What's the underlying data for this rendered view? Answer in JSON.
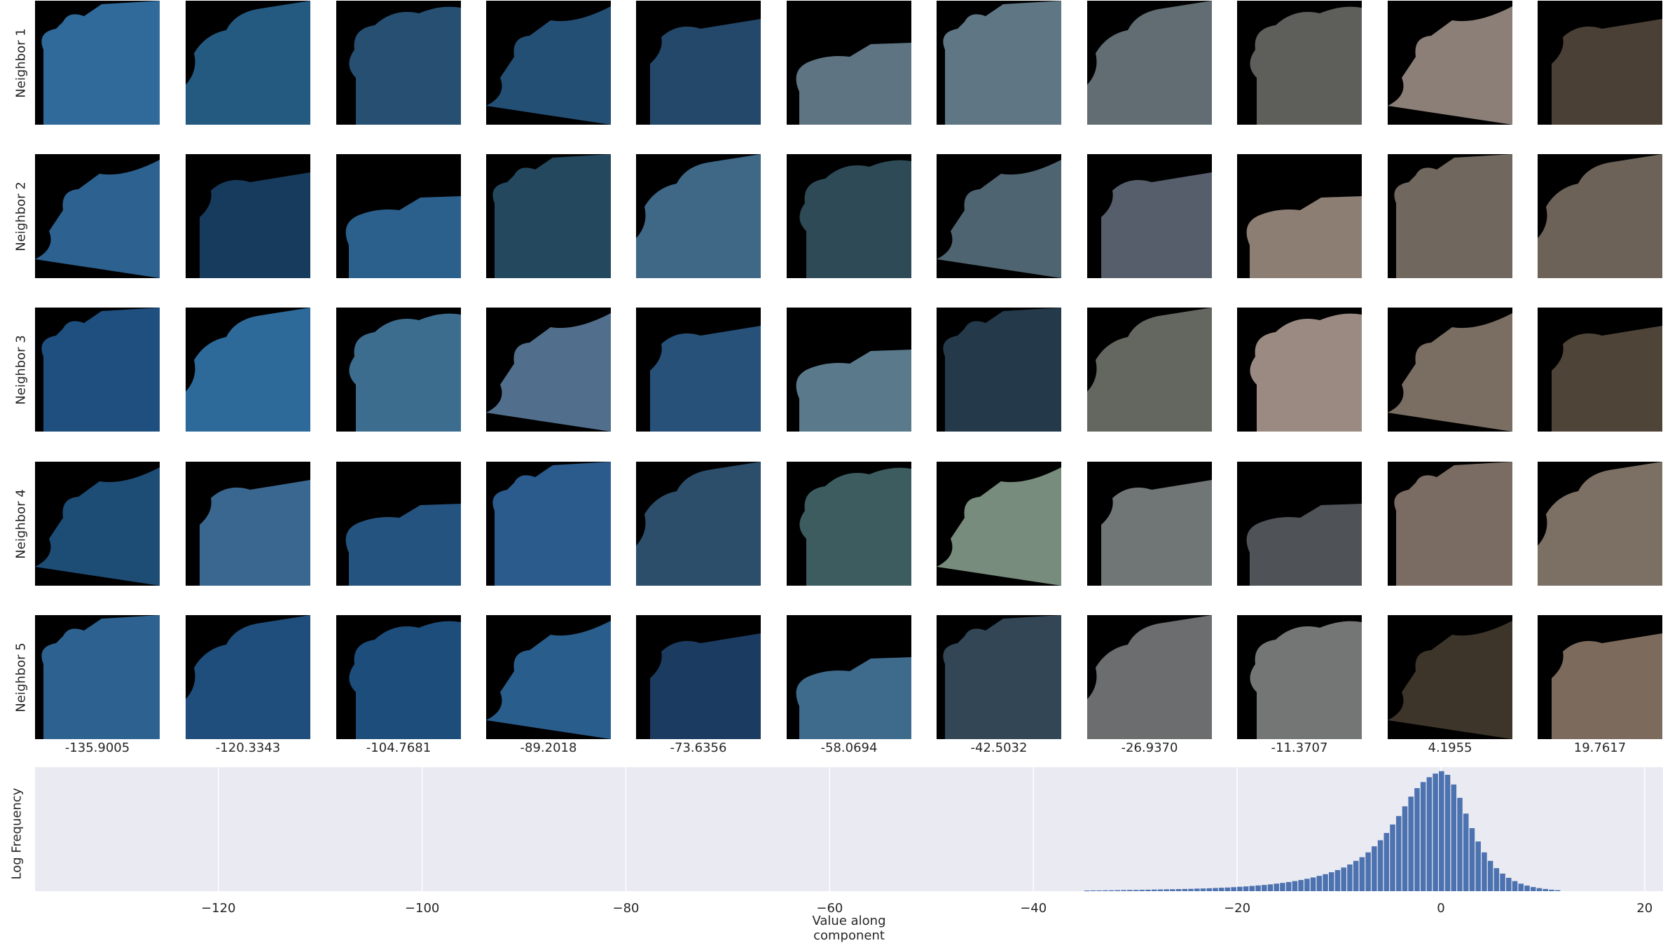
{
  "row_labels": [
    "Neighbor 1",
    "Neighbor 2",
    "Neighbor 3",
    "Neighbor 4",
    "Neighbor 5"
  ],
  "column_values": [
    "-135.9005",
    "-120.3343",
    "-104.7681",
    "-89.2018",
    "-73.6356",
    "-58.0694",
    "-42.5032",
    "-26.9370",
    "-11.3707",
    "4.1955",
    "19.7617"
  ],
  "thumbnail_colors": [
    [
      "#2f6a9a",
      "#245a80",
      "#264f72",
      "#244f74",
      "#23486a",
      "#5e7482",
      "#5f7684",
      "#616d72",
      "#5e5f5a",
      "#8b7f78",
      "#4a4036"
    ],
    [
      "#2c6190",
      "#173b5c",
      "#2b5f8c",
      "#24485e",
      "#3f6786",
      "#2d4a56",
      "#4e6470",
      "#575e6b",
      "#8d7e73",
      "#70675e",
      "#6c6258"
    ],
    [
      "#1e4f7f",
      "#2d6a9a",
      "#3c6d8f",
      "#516f8c",
      "#275178",
      "#5a7a8c",
      "#24394a",
      "#646760",
      "#9a8a82",
      "#7a6e62",
      "#4e4438"
    ],
    [
      "#1d4c75",
      "#3a6790",
      "#24537f",
      "#2b5b8c",
      "#2c4e6a",
      "#3d5c60",
      "#778c7c",
      "#707575",
      "#4f5357",
      "#7a6c62",
      "#7c7064"
    ],
    [
      "#2d6290",
      "#1f4e7c",
      "#1d4d7b",
      "#295d8c",
      "#1c3b60",
      "#3e6a8c",
      "#324656",
      "#6b6d6e",
      "#737675",
      "#3d352a",
      "#7c6a5c"
    ]
  ],
  "chart_data": {
    "type": "bar",
    "xlabel": "Value along component",
    "ylabel": "Log Frequency",
    "xlim": [
      -138,
      21.8
    ],
    "xticks": [
      -120,
      -100,
      -80,
      -60,
      -40,
      -20,
      0,
      20
    ],
    "x_tick_labels": [
      "−120",
      "−100",
      "−80",
      "−60",
      "−40",
      "−20",
      "0",
      "20"
    ],
    "grid": true,
    "bar_color": "#4c72b0",
    "background": "#eaeaf2",
    "bin_width": 0.6,
    "bins": [
      {
        "x": -35.0,
        "h": 0.005
      },
      {
        "x": -34.4,
        "h": 0.006
      },
      {
        "x": -33.8,
        "h": 0.006
      },
      {
        "x": -33.2,
        "h": 0.007
      },
      {
        "x": -32.6,
        "h": 0.007
      },
      {
        "x": -32.0,
        "h": 0.008
      },
      {
        "x": -31.4,
        "h": 0.009
      },
      {
        "x": -30.8,
        "h": 0.01
      },
      {
        "x": -30.2,
        "h": 0.01
      },
      {
        "x": -29.6,
        "h": 0.011
      },
      {
        "x": -29.0,
        "h": 0.012
      },
      {
        "x": -28.4,
        "h": 0.013
      },
      {
        "x": -27.8,
        "h": 0.014
      },
      {
        "x": -27.2,
        "h": 0.015
      },
      {
        "x": -26.6,
        "h": 0.016
      },
      {
        "x": -26.0,
        "h": 0.017
      },
      {
        "x": -25.4,
        "h": 0.018
      },
      {
        "x": -24.8,
        "h": 0.019
      },
      {
        "x": -24.2,
        "h": 0.021
      },
      {
        "x": -23.6,
        "h": 0.022
      },
      {
        "x": -23.0,
        "h": 0.024
      },
      {
        "x": -22.4,
        "h": 0.026
      },
      {
        "x": -21.8,
        "h": 0.028
      },
      {
        "x": -21.2,
        "h": 0.03
      },
      {
        "x": -20.6,
        "h": 0.033
      },
      {
        "x": -20.0,
        "h": 0.036
      },
      {
        "x": -19.4,
        "h": 0.039
      },
      {
        "x": -18.8,
        "h": 0.043
      },
      {
        "x": -18.2,
        "h": 0.047
      },
      {
        "x": -17.6,
        "h": 0.051
      },
      {
        "x": -17.0,
        "h": 0.056
      },
      {
        "x": -16.4,
        "h": 0.062
      },
      {
        "x": -15.8,
        "h": 0.068
      },
      {
        "x": -15.2,
        "h": 0.075
      },
      {
        "x": -14.6,
        "h": 0.083
      },
      {
        "x": -14.0,
        "h": 0.092
      },
      {
        "x": -13.4,
        "h": 0.102
      },
      {
        "x": -12.8,
        "h": 0.113
      },
      {
        "x": -12.2,
        "h": 0.126
      },
      {
        "x": -11.6,
        "h": 0.14
      },
      {
        "x": -11.0,
        "h": 0.156
      },
      {
        "x": -10.4,
        "h": 0.174
      },
      {
        "x": -9.8,
        "h": 0.195
      },
      {
        "x": -9.2,
        "h": 0.22
      },
      {
        "x": -8.6,
        "h": 0.25
      },
      {
        "x": -8.0,
        "h": 0.28
      },
      {
        "x": -7.4,
        "h": 0.32
      },
      {
        "x": -6.8,
        "h": 0.37
      },
      {
        "x": -6.2,
        "h": 0.42
      },
      {
        "x": -5.6,
        "h": 0.48
      },
      {
        "x": -5.0,
        "h": 0.55
      },
      {
        "x": -4.4,
        "h": 0.62
      },
      {
        "x": -3.8,
        "h": 0.7
      },
      {
        "x": -3.2,
        "h": 0.78
      },
      {
        "x": -2.6,
        "h": 0.85
      },
      {
        "x": -2.0,
        "h": 0.9
      },
      {
        "x": -1.4,
        "h": 0.94
      },
      {
        "x": -0.8,
        "h": 0.97
      },
      {
        "x": -0.2,
        "h": 0.99
      },
      {
        "x": 0.4,
        "h": 0.96
      },
      {
        "x": 1.0,
        "h": 0.88
      },
      {
        "x": 1.6,
        "h": 0.77
      },
      {
        "x": 2.2,
        "h": 0.64
      },
      {
        "x": 2.8,
        "h": 0.52
      },
      {
        "x": 3.4,
        "h": 0.41
      },
      {
        "x": 4.0,
        "h": 0.32
      },
      {
        "x": 4.6,
        "h": 0.25
      },
      {
        "x": 5.2,
        "h": 0.19
      },
      {
        "x": 5.8,
        "h": 0.145
      },
      {
        "x": 6.4,
        "h": 0.11
      },
      {
        "x": 7.0,
        "h": 0.083
      },
      {
        "x": 7.6,
        "h": 0.062
      },
      {
        "x": 8.2,
        "h": 0.046
      },
      {
        "x": 8.8,
        "h": 0.034
      },
      {
        "x": 9.4,
        "h": 0.025
      },
      {
        "x": 10.0,
        "h": 0.018
      },
      {
        "x": 10.6,
        "h": 0.012
      },
      {
        "x": 11.2,
        "h": 0.008
      }
    ]
  }
}
